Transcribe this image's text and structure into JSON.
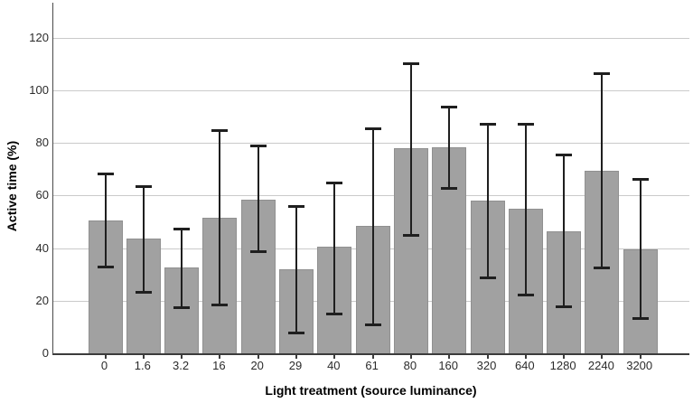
{
  "chart_data": {
    "type": "bar",
    "title": "",
    "xlabel": "Light treatment (source luminance)",
    "ylabel": "Active time (%)",
    "categories": [
      "0",
      "1.6",
      "3.2",
      "16",
      "20",
      "29",
      "40",
      "61",
      "80",
      "160",
      "320",
      "640",
      "1280",
      "2240",
      "3200"
    ],
    "values": [
      50.5,
      43.5,
      32.5,
      51.5,
      58.5,
      32,
      40.5,
      48.5,
      78,
      78.5,
      58,
      55,
      46.5,
      69.5,
      39.5
    ],
    "error_low": [
      33,
      23.5,
      17.5,
      18.5,
      39,
      8,
      15,
      11,
      45,
      63,
      29,
      22.5,
      18,
      32.5,
      13.5
    ],
    "error_high": [
      68.5,
      63.5,
      47.5,
      85,
      79,
      56,
      65,
      85.5,
      110.5,
      94,
      87.5,
      87.5,
      75.5,
      106.5,
      66.5
    ],
    "yticks": [
      0,
      20,
      40,
      60,
      80,
      100,
      120
    ],
    "ylim": [
      0,
      133.4
    ],
    "grid": "horizontal",
    "legend": "none",
    "colors": {
      "bar_fill": "#a1a1a1",
      "bar_border": "#909090",
      "error_bar": "#1f1f1f",
      "gridline": "#cacaca",
      "axis_line": "#3c3c3c",
      "tick_label": "#2b2b2b",
      "axis_title": "#000000",
      "background": "#ffffff"
    }
  }
}
